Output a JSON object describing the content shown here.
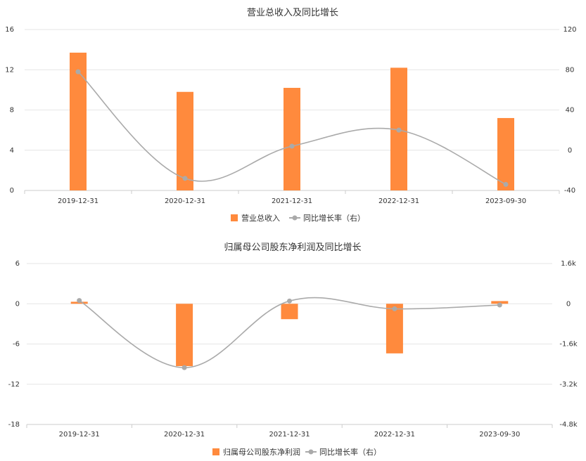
{
  "colors": {
    "bar": "#ff8a3d",
    "line": "#aaaaaa",
    "grid": "#e6e6e6",
    "axis": "#cccccc",
    "text": "#333333"
  },
  "legend": {
    "icon_bar": "square-icon",
    "icon_line": "line-dot-icon"
  },
  "chart_data": [
    {
      "type": "bar+line",
      "title": "营业总收入及同比增长",
      "categories": [
        "2019-12-31",
        "2020-12-31",
        "2021-12-31",
        "2022-12-31",
        "2023-09-30"
      ],
      "series": [
        {
          "name": "营业总收入",
          "type": "bar",
          "axis": "left",
          "values": [
            13.7,
            9.8,
            10.2,
            12.2,
            7.2
          ]
        },
        {
          "name": "同比增长率（右）",
          "type": "line",
          "axis": "right",
          "values": [
            78,
            -28,
            4,
            20,
            -34
          ]
        }
      ],
      "y_left": {
        "min": 0,
        "max": 16,
        "ticks": [
          "0",
          "4",
          "8",
          "12",
          "16"
        ]
      },
      "y_right": {
        "min": -40,
        "max": 120,
        "ticks": [
          "-40",
          "0",
          "40",
          "80",
          "120"
        ]
      },
      "grid": true,
      "legend_position": "bottom"
    },
    {
      "type": "bar+line",
      "title": "归属母公司股东净利润及同比增长",
      "categories": [
        "2019-12-31",
        "2020-12-31",
        "2021-12-31",
        "2022-12-31",
        "2023-09-30"
      ],
      "series": [
        {
          "name": "归属母公司股东净利润",
          "type": "bar",
          "axis": "left",
          "values": [
            0.3,
            -9.3,
            -2.3,
            -7.4,
            0.4
          ]
        },
        {
          "name": "同比增长率（右）",
          "type": "line",
          "axis": "right",
          "values": [
            130,
            -2540,
            110,
            -200,
            -50
          ]
        }
      ],
      "y_left": {
        "min": -18,
        "max": 6,
        "ticks": [
          "-18",
          "-12",
          "-6",
          "0",
          "6"
        ]
      },
      "y_right": {
        "min": -4800,
        "max": 1600,
        "ticks": [
          "-4.8k",
          "-3.2k",
          "-1.6k",
          "0",
          "1.6k"
        ]
      },
      "grid": true,
      "legend_position": "bottom"
    }
  ]
}
